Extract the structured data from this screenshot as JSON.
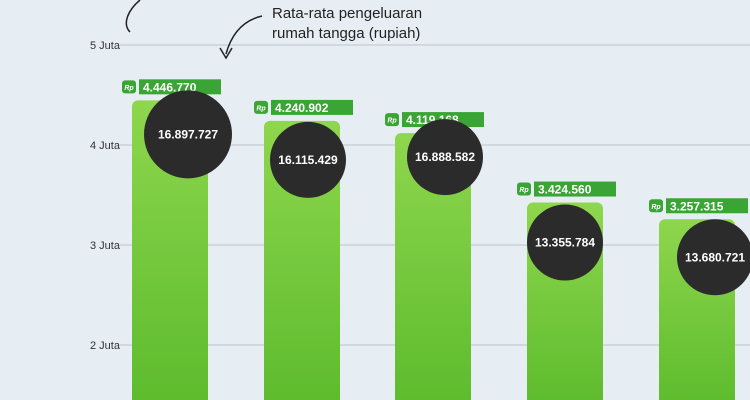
{
  "chart_data": {
    "type": "bar",
    "ylim": [
      1.45,
      5.45
    ],
    "yticks": [
      {
        "value": 2,
        "label": "2 Juta"
      },
      {
        "value": 3,
        "label": "3 Juta"
      },
      {
        "value": 4,
        "label": "4 Juta"
      },
      {
        "value": 5,
        "label": "5 Juta"
      }
    ],
    "currency_badge": "Rp",
    "legend": {
      "line1": "Rata-rata pengeluaran",
      "line2": "rumah tangga (rupiah)"
    },
    "bars": [
      {
        "value": 4.44677,
        "label": "4.446.770",
        "secondary": 16897727,
        "secondary_label": "16.897.727"
      },
      {
        "value": 4.240902,
        "label": "4.240.902",
        "secondary": 16115429,
        "secondary_label": "16.115.429"
      },
      {
        "value": 4.119168,
        "label": "4.119.168",
        "secondary": 16888582,
        "secondary_label": "16.888.582"
      },
      {
        "value": 3.42456,
        "label": "3.424.560",
        "secondary": 13355784,
        "secondary_label": "13.355.784"
      },
      {
        "value": 3.257315,
        "label": "3.257.315",
        "secondary": 13680721,
        "secondary_label": "13.680.721"
      }
    ],
    "colors": {
      "bar_top": "#8ed64e",
      "bar_bottom": "#5cbb2c",
      "label_bg": "#3aa534",
      "circle": "#2b2b2b",
      "grid": "#b9c4cc"
    }
  }
}
